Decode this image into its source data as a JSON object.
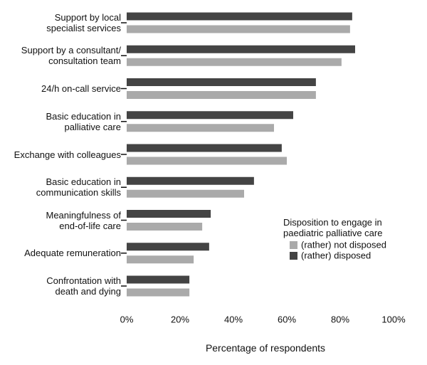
{
  "chart_data": {
    "type": "hbar",
    "categories": [
      "Support by local\nspecialist services",
      "Support by a consultant/\nconsultation team",
      "24/h on-call service",
      "Basic education in\npalliative care",
      "Exchange with colleagues",
      "Basic education in\ncommunication skills",
      "Meaningfulness of\nend-of-life care",
      "Adequate remuneration",
      "Confrontation with\ndeath and dying"
    ],
    "series": [
      {
        "name": "(rather) not disposed",
        "color": "#aaaaaa",
        "values": [
          83.7,
          80.5,
          70.9,
          55.2,
          60,
          44,
          28.3,
          25.1,
          23.5
        ]
      },
      {
        "name": "(rather) disposed",
        "color": "#444444",
        "values": [
          84.5,
          85.6,
          70.9,
          62.4,
          58.1,
          47.7,
          31.5,
          30.9,
          23.5
        ]
      }
    ],
    "legend_title": "Disposition to engage in\npaediatric palliative care",
    "xlabel": "Percentage of respondents",
    "xlim": [
      0,
      100
    ],
    "xticks": [
      {
        "value": 0,
        "label": "0%"
      },
      {
        "value": 20,
        "label": "20%"
      },
      {
        "value": 40,
        "label": "40%"
      },
      {
        "value": 60,
        "label": "60%"
      },
      {
        "value": 80,
        "label": "80%"
      },
      {
        "value": 100,
        "label": "100%"
      }
    ]
  }
}
